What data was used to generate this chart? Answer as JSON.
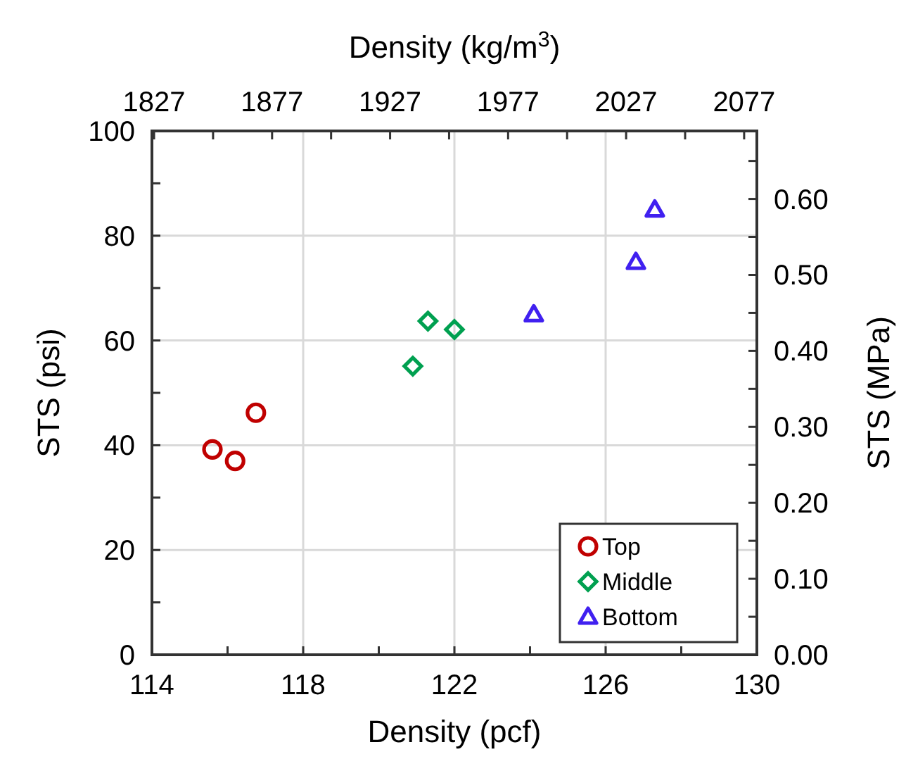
{
  "chart_data": {
    "type": "scatter",
    "xlabel": "Density (pcf)",
    "ylabel": "STS (psi)",
    "y2label": "STS (MPa)",
    "x2label": "Density (kg/m$^{3}$)",
    "xlim": [
      114,
      130
    ],
    "xticks": [
      114,
      {
        "value": 116,
        "label": null
      },
      118,
      {
        "value": 120,
        "label": null
      },
      122,
      {
        "value": 124,
        "label": null
      },
      126,
      {
        "value": 128,
        "label": null
      },
      130
    ],
    "ylim": [
      0,
      100
    ],
    "yticks": [
      0,
      {
        "value": 10,
        "label": null
      },
      20,
      {
        "value": 30,
        "label": null
      },
      40,
      {
        "value": 50,
        "label": null
      },
      60,
      {
        "value": 70,
        "label": null
      },
      80,
      {
        "value": 90,
        "label": null
      },
      100
    ],
    "y2lim": [
      0,
      0.6895
    ],
    "y2ticks": [
      {
        "value": 0,
        "label": "0.00"
      },
      {
        "value": 0.05,
        "label": null
      },
      {
        "value": 0.1,
        "label": "0.10"
      },
      {
        "value": 0.15,
        "label": null
      },
      {
        "value": 0.2,
        "label": "0.20"
      },
      {
        "value": 0.25,
        "label": null
      },
      {
        "value": 0.3,
        "label": "0.30"
      },
      {
        "value": 0.35,
        "label": null
      },
      {
        "value": 0.4,
        "label": "0.40"
      },
      {
        "value": 0.45,
        "label": null
      },
      {
        "value": 0.5,
        "label": "0.50"
      },
      {
        "value": 0.55,
        "label": null
      },
      {
        "value": 0.6,
        "label": "0.60"
      },
      {
        "value": 0.65,
        "label": null
      }
    ],
    "x2lim": [
      1826.1,
      2082.4
    ],
    "x2ticks": [
      1827,
      {
        "value": 1852,
        "label": null
      },
      1877,
      {
        "value": 1902,
        "label": null
      },
      1927,
      {
        "value": 1952,
        "label": null
      },
      1977,
      {
        "value": 2002,
        "label": null
      },
      2027,
      {
        "value": 2052,
        "label": null
      },
      2077
    ],
    "grid": true,
    "legend": "bottom right",
    "series": [
      {
        "name": "Top",
        "color": "#c00000",
        "marker": "circle",
        "x": [
          115.6,
          116.2,
          116.75
        ],
        "values": [
          39.2,
          37.0,
          46.2
        ]
      },
      {
        "name": "Middle",
        "color": "#00a050",
        "marker": "diamond",
        "x": [
          120.9,
          121.3,
          122.0
        ],
        "values": [
          55.1,
          63.7,
          62.1
        ]
      },
      {
        "name": "Bottom",
        "color": "#4020f0",
        "marker": "triangle",
        "x": [
          124.1,
          126.8,
          127.3
        ],
        "values": [
          65.0,
          75.0,
          85.0
        ]
      }
    ]
  }
}
